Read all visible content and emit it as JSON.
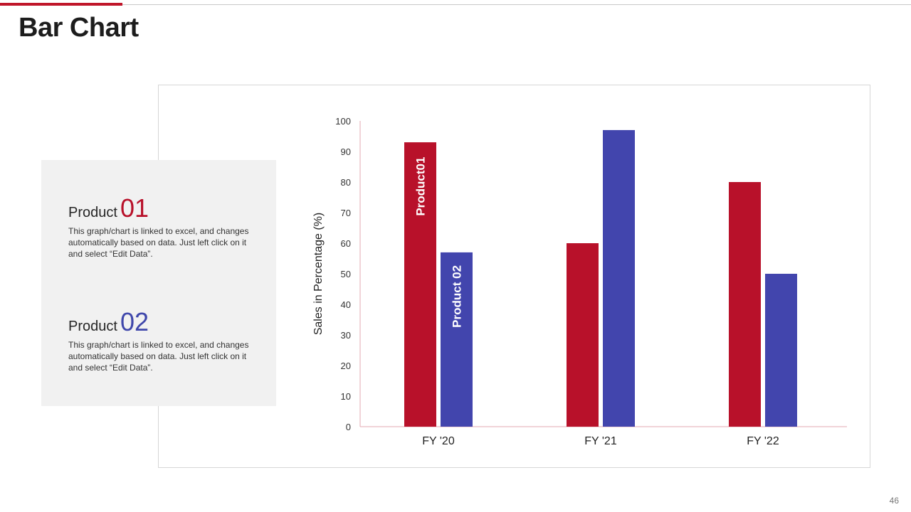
{
  "slide": {
    "title": "Bar Chart",
    "page_number": "46",
    "accent_color": "#c0162a"
  },
  "panel": {
    "products": [
      {
        "label": "Product",
        "number": "01",
        "color": "#b8112a",
        "description": "This graph/chart is linked to excel, and changes automatically based on data. Just left click on it and select “Edit Data”."
      },
      {
        "label": "Product",
        "number": "02",
        "color": "#3f47ab",
        "description": "This graph/chart is linked to excel, and changes automatically based on data. Just left click on it and select “Edit Data”."
      }
    ]
  },
  "chart_data": {
    "type": "bar",
    "title": "",
    "xlabel": "",
    "ylabel": "Sales in Percentage (%)",
    "categories": [
      "FY '20",
      "FY '21",
      "FY '22"
    ],
    "series": [
      {
        "name": "Product01",
        "color": "#b8112a",
        "values": [
          93,
          60,
          80
        ]
      },
      {
        "name": "Product 02",
        "color": "#4245ad",
        "values": [
          57,
          97,
          50
        ]
      }
    ],
    "ylim": [
      0,
      100
    ],
    "yticks": [
      0,
      10,
      20,
      30,
      40,
      50,
      60,
      70,
      80,
      90,
      100
    ],
    "grid": false,
    "legend": "none",
    "in_bar_labels": [
      "Product01",
      "Product 02"
    ]
  }
}
